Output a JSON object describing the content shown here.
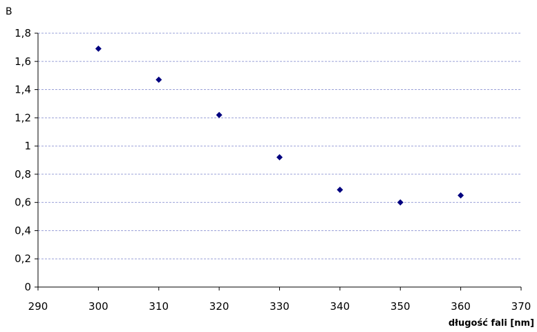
{
  "chart_data": {
    "type": "scatter",
    "title": "",
    "ylabel": "B",
    "xlabel": "długość fali [nm]",
    "xlim": [
      290,
      370
    ],
    "ylim": [
      0,
      1.8
    ],
    "x_ticks": [
      290,
      300,
      310,
      320,
      330,
      340,
      350,
      360,
      370
    ],
    "x_tick_labels": [
      "290",
      "300",
      "310",
      "320",
      "330",
      "340",
      "350",
      "360",
      "370"
    ],
    "y_ticks": [
      0,
      0.2,
      0.4,
      0.6,
      0.8,
      1,
      1.2,
      1.4,
      1.6,
      1.8
    ],
    "y_tick_labels": [
      "0",
      "0,2",
      "0,4",
      "0,6",
      "0,8",
      "1",
      "1,2",
      "1,4",
      "1,6",
      "1,8"
    ],
    "grid": "horizontal dashed",
    "series": [
      {
        "marker": "diamond",
        "color": "#00007f",
        "x": [
          300,
          310,
          320,
          330,
          340,
          350,
          360
        ],
        "y": [
          1.69,
          1.47,
          1.22,
          0.92,
          0.69,
          0.6,
          0.65
        ]
      }
    ]
  },
  "colors": {
    "marker": "#00007f",
    "grid": "#9aa0d8",
    "axis": "#000000"
  }
}
